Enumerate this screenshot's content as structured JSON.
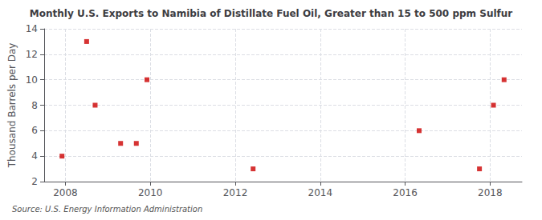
{
  "chart_data": {
    "type": "scatter",
    "title": "Monthly U.S. Exports to Namibia of Distillate Fuel Oil, Greater than 15 to 500 ppm Sulfur",
    "ylabel": "Thousand Barrels per Day",
    "source": "Source: U.S. Energy Information Administration",
    "x": [
      2007.92,
      2008.5,
      2008.7,
      2009.3,
      2009.67,
      2009.92,
      2012.42,
      2016.33,
      2017.75,
      2018.08,
      2018.33
    ],
    "values": [
      4,
      13,
      8,
      5,
      5,
      10,
      3,
      6,
      3,
      8,
      10
    ],
    "color": "#cc0000",
    "marker": "square",
    "xlim": [
      2007.5,
      2018.75
    ],
    "ylim": [
      2,
      14
    ],
    "xticks": [
      2008,
      2010,
      2012,
      2014,
      2016,
      2018
    ],
    "yticks": [
      2,
      4,
      6,
      8,
      10,
      12,
      14
    ],
    "grid": true
  }
}
